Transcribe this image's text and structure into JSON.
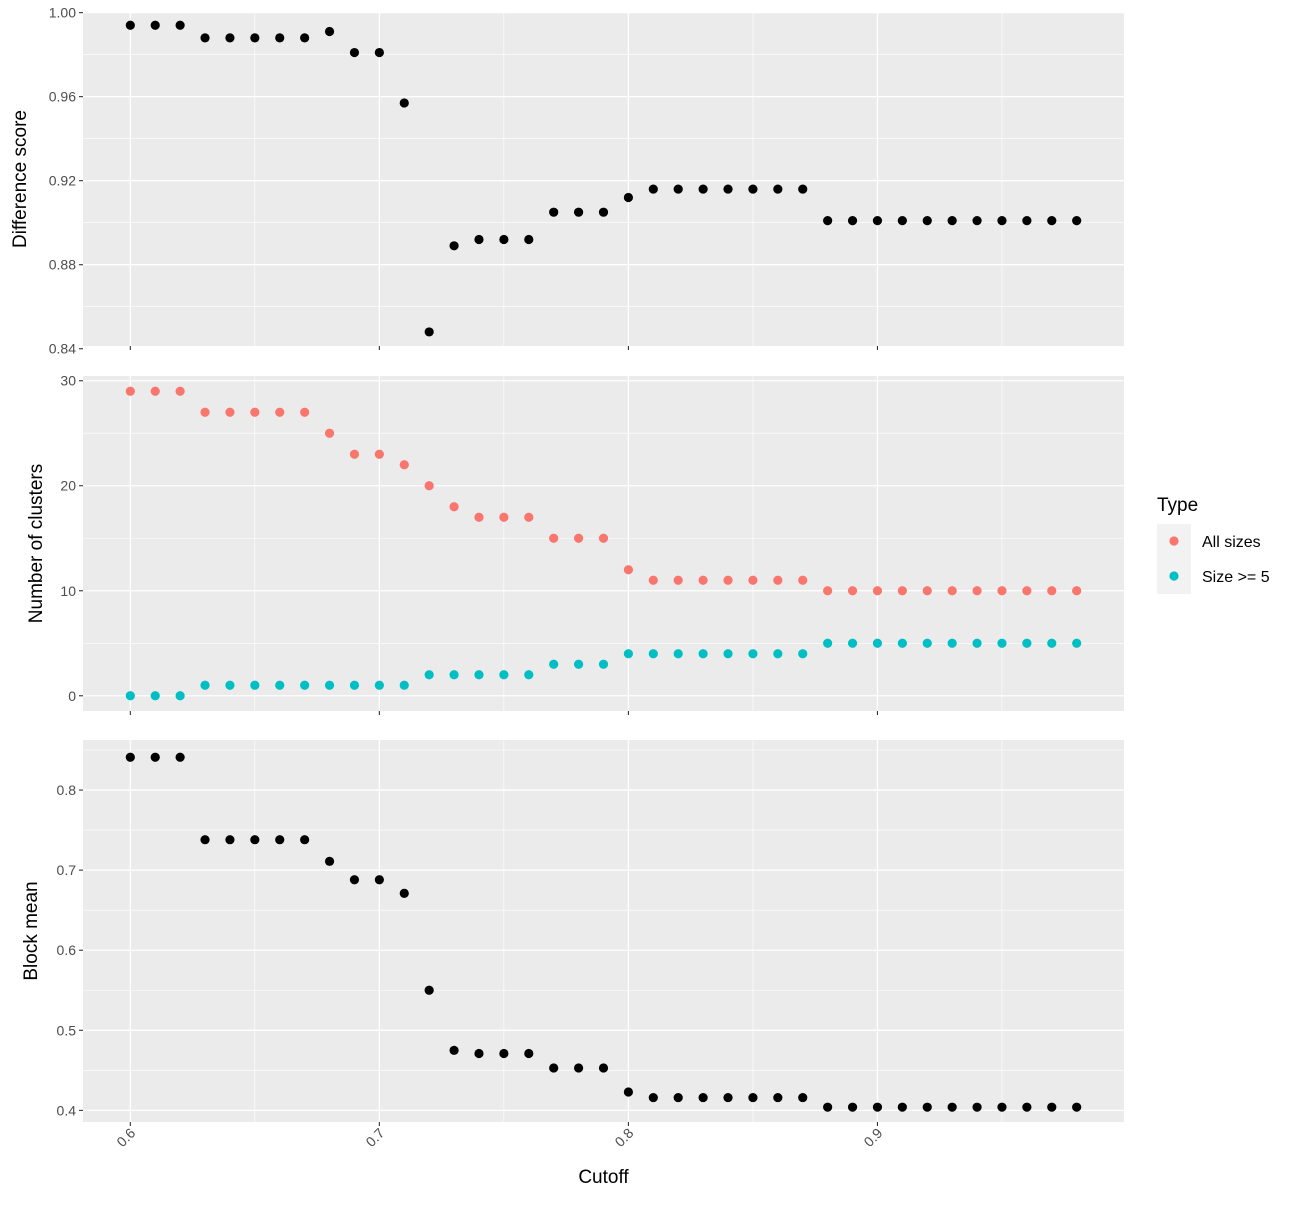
{
  "chart_data": {
    "type": "scatter",
    "xlabel": "Cutoff",
    "xlim": [
      0.581,
      0.999
    ],
    "x_ticks": [
      0.6,
      0.7,
      0.8,
      0.9
    ],
    "x_tick_labels": [
      "0.6",
      "0.7",
      "0.8",
      "0.9"
    ],
    "x": [
      0.6,
      0.61,
      0.62,
      0.63,
      0.64,
      0.65,
      0.66,
      0.67,
      0.68,
      0.69,
      0.7,
      0.71,
      0.72,
      0.73,
      0.74,
      0.75,
      0.76,
      0.77,
      0.78,
      0.79,
      0.8,
      0.81,
      0.82,
      0.83,
      0.84,
      0.85,
      0.86,
      0.87,
      0.88,
      0.89,
      0.9,
      0.91,
      0.92,
      0.93,
      0.94,
      0.95,
      0.96,
      0.97,
      0.98
    ],
    "grid": true,
    "panels": [
      {
        "ylabel": "Difference score",
        "ylim": [
          0.8413,
          1.0003
        ],
        "y_ticks": [
          0.84,
          0.88,
          0.92,
          0.96,
          1.0
        ],
        "y_tick_labels": [
          "0.84",
          "0.88",
          "0.92",
          "0.96",
          "1.00"
        ],
        "series": [
          {
            "color": "#000000",
            "values": [
              0.994,
              0.994,
              0.994,
              0.988,
              0.988,
              0.988,
              0.988,
              0.988,
              0.991,
              0.981,
              0.981,
              0.957,
              0.848,
              0.889,
              0.892,
              0.892,
              0.892,
              0.905,
              0.905,
              0.905,
              0.912,
              0.916,
              0.916,
              0.916,
              0.916,
              0.916,
              0.916,
              0.916,
              0.901,
              0.901,
              0.901,
              0.901,
              0.901,
              0.901,
              0.901,
              0.901,
              0.901,
              0.901,
              0.901
            ]
          }
        ]
      },
      {
        "ylabel": "Number of clusters",
        "ylim": [
          -1.45,
          30.45
        ],
        "y_ticks": [
          0,
          10,
          20,
          30
        ],
        "y_tick_labels": [
          "0",
          "10",
          "20",
          "30"
        ],
        "series": [
          {
            "name": "All sizes",
            "color": "#F8766D",
            "values": [
              29,
              29,
              29,
              27,
              27,
              27,
              27,
              27,
              25,
              23,
              23,
              22,
              20,
              18,
              17,
              17,
              17,
              15,
              15,
              15,
              12,
              11,
              11,
              11,
              11,
              11,
              11,
              11,
              10,
              10,
              10,
              10,
              10,
              10,
              10,
              10,
              10,
              10,
              10
            ]
          },
          {
            "name": "Size >= 5",
            "color": "#00BFC4",
            "values": [
              0,
              0,
              0,
              1,
              1,
              1,
              1,
              1,
              1,
              1,
              1,
              1,
              2,
              2,
              2,
              2,
              2,
              3,
              3,
              3,
              4,
              4,
              4,
              4,
              4,
              4,
              4,
              4,
              5,
              5,
              5,
              5,
              5,
              5,
              5,
              5,
              5,
              5,
              5
            ]
          }
        ]
      },
      {
        "ylabel": "Block mean",
        "ylim": [
          0.3855,
          0.8625
        ],
        "y_ticks": [
          0.4,
          0.5,
          0.6,
          0.7,
          0.8
        ],
        "y_tick_labels": [
          "0.4",
          "0.5",
          "0.6",
          "0.7",
          "0.8"
        ],
        "series": [
          {
            "color": "#000000",
            "values": [
              0.841,
              0.841,
              0.841,
              0.738,
              0.738,
              0.738,
              0.738,
              0.738,
              0.711,
              0.688,
              0.688,
              0.671,
              0.55,
              0.475,
              0.471,
              0.471,
              0.471,
              0.453,
              0.453,
              0.453,
              0.423,
              0.416,
              0.416,
              0.416,
              0.416,
              0.416,
              0.416,
              0.416,
              0.404,
              0.404,
              0.404,
              0.404,
              0.404,
              0.404,
              0.404,
              0.404,
              0.404,
              0.404,
              0.404
            ]
          }
        ]
      }
    ],
    "legend": {
      "title": "Type",
      "placement": "right",
      "entries": [
        {
          "label": "All sizes",
          "color": "#F8766D"
        },
        {
          "label": "Size >= 5",
          "color": "#00BFC4"
        }
      ]
    }
  }
}
